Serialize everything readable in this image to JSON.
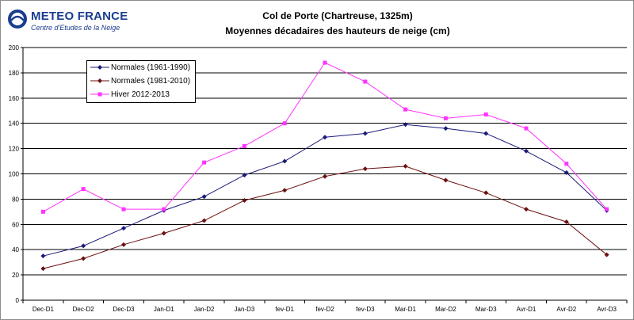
{
  "header": {
    "logo_name": "METEO FRANCE",
    "logo_sub": "Centre d'Etudes de la Neige",
    "logo_icon": "meteo-france-logo-icon"
  },
  "colors": {
    "normales_1961_1990": "#1a1a7a",
    "normales_1981_2010": "#6b1010",
    "hiver_2012_2013": "#ff33ff",
    "grid": "#000000",
    "logo": "#1a3d8f"
  },
  "chart_data": {
    "type": "line",
    "title": "Col de Porte (Chartreuse, 1325m)",
    "subtitle": "Moyennes décadaires des hauteurs de neige (cm)",
    "xlabel": "",
    "ylabel": "",
    "categories": [
      "Dec-D1",
      "Dec-D2",
      "Dec-D3",
      "Jan-D1",
      "Jan-D2",
      "Jan-D3",
      "fev-D1",
      "fev-D2",
      "fev-D3",
      "Mar-D1",
      "Mar-D2",
      "Mar-D3",
      "Avr-D1",
      "Avr-D2",
      "Avr-D3"
    ],
    "ylim": [
      0,
      200
    ],
    "yticks": [
      0,
      20,
      40,
      60,
      80,
      100,
      120,
      140,
      160,
      180,
      200
    ],
    "grid": true,
    "legend_position": "top-left",
    "series": [
      {
        "name": "Normales (1961-1990)",
        "marker": "diamond",
        "values": [
          35,
          43,
          57,
          71,
          82,
          99,
          110,
          129,
          132,
          139,
          136,
          132,
          118,
          101,
          71
        ]
      },
      {
        "name": "Normales (1981-2010)",
        "marker": "diamond",
        "values": [
          25,
          33,
          44,
          53,
          63,
          79,
          87,
          98,
          104,
          106,
          95,
          85,
          72,
          62,
          36
        ]
      },
      {
        "name": "Hiver 2012-2013",
        "marker": "square",
        "values": [
          70,
          88,
          72,
          72,
          109,
          122,
          140,
          188,
          173,
          151,
          144,
          147,
          136,
          108,
          72
        ]
      }
    ]
  }
}
